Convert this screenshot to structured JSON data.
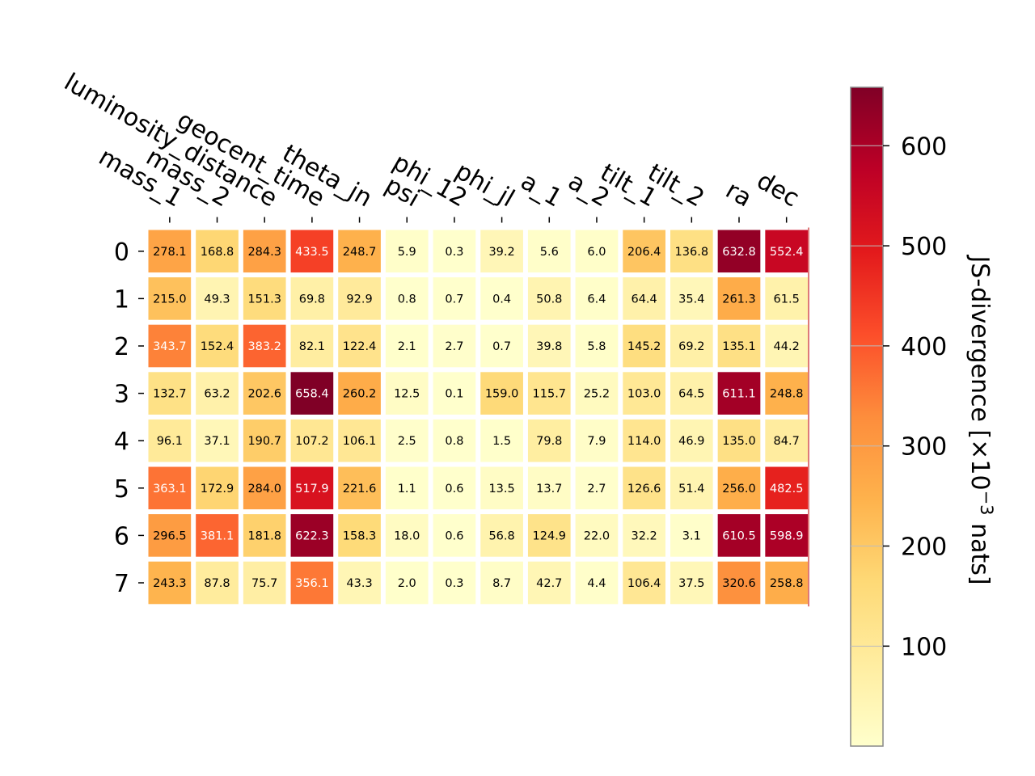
{
  "chart_data": {
    "type": "heatmap",
    "x_categories": [
      "mass_1",
      "mass_2",
      "luminosity_distance",
      "geocent_time",
      "theta_jn",
      "psi",
      "phi_12",
      "phi_jl",
      "a_1",
      "a_2",
      "tilt_1",
      "tilt_2",
      "ra",
      "dec"
    ],
    "y_categories": [
      "0",
      "1",
      "2",
      "3",
      "4",
      "5",
      "6",
      "7"
    ],
    "values": [
      [
        278.1,
        168.8,
        284.3,
        433.5,
        248.7,
        5.9,
        0.3,
        39.2,
        5.6,
        6.0,
        206.4,
        136.8,
        632.8,
        552.4
      ],
      [
        215.0,
        49.3,
        151.3,
        69.8,
        92.9,
        0.8,
        0.7,
        0.4,
        50.8,
        6.4,
        64.4,
        35.4,
        261.3,
        61.5
      ],
      [
        343.7,
        152.4,
        383.2,
        82.1,
        122.4,
        2.1,
        2.7,
        0.7,
        39.8,
        5.8,
        145.2,
        69.2,
        135.1,
        44.2
      ],
      [
        132.7,
        63.2,
        202.6,
        658.4,
        260.2,
        12.5,
        0.1,
        159.0,
        115.7,
        25.2,
        103.0,
        64.5,
        611.1,
        248.8
      ],
      [
        96.1,
        37.1,
        190.7,
        107.2,
        106.1,
        2.5,
        0.8,
        1.5,
        79.8,
        7.9,
        114.0,
        46.9,
        135.0,
        84.7
      ],
      [
        363.1,
        172.9,
        284.0,
        517.9,
        221.6,
        1.1,
        0.6,
        13.5,
        13.7,
        2.7,
        126.6,
        51.4,
        256.0,
        482.5
      ],
      [
        296.5,
        381.1,
        181.8,
        622.3,
        158.3,
        18.0,
        0.6,
        56.8,
        124.9,
        22.0,
        32.2,
        3.1,
        610.5,
        598.9
      ],
      [
        243.3,
        87.8,
        75.7,
        356.1,
        43.3,
        2.0,
        0.3,
        8.7,
        42.7,
        4.4,
        106.4,
        37.5,
        320.6,
        258.8
      ]
    ],
    "colormap": "YlOrRd",
    "vmin": 0.1,
    "vmax": 658.4,
    "colorbar": {
      "label": "JS-divergence [×10",
      "label_sup": "−3",
      "label_end": " nats]",
      "ticks": [
        "100",
        "200",
        "300",
        "400",
        "500",
        "600"
      ]
    },
    "colormap_stops": [
      "#ffffcc",
      "#ffeda0",
      "#fed976",
      "#feb24c",
      "#fd8d3c",
      "#fc4e2a",
      "#e31a1c",
      "#bd0026",
      "#800026"
    ],
    "grid": false,
    "legend": "none"
  }
}
